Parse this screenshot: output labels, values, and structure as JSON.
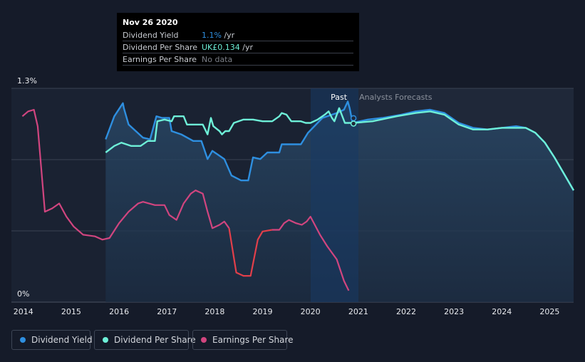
{
  "tooltip": {
    "date": "Nov 26 2020",
    "rows": [
      {
        "label": "Dividend Yield",
        "value": "1.1%",
        "unit": " /yr",
        "color": "#2e8fe0"
      },
      {
        "label": "Dividend Per Share",
        "value": "UK£0.134",
        "unit": " /yr",
        "color": "#6ef0d8"
      },
      {
        "label": "Earnings Per Share",
        "value": "No data",
        "unit": "",
        "color": "#7b7f88"
      }
    ]
  },
  "legend": [
    {
      "label": "Dividend Yield",
      "color": "#2e8fe0"
    },
    {
      "label": "Dividend Per Share",
      "color": "#6ef0d8"
    },
    {
      "label": "Earnings Per Share",
      "color": "#d1457f"
    }
  ],
  "chart_data": {
    "type": "line",
    "ylabel_top": "1.3%",
    "ylabel_bottom": "0%",
    "ylim": [
      0,
      1.3
    ],
    "xlim": [
      2013.75,
      2025.5
    ],
    "x_ticks": [
      "2014",
      "2015",
      "2016",
      "2017",
      "2018",
      "2019",
      "2020",
      "2021",
      "2022",
      "2023",
      "2024",
      "2025"
    ],
    "past_label": "Past",
    "forecast_label": "Analysts Forecasts",
    "past_end": 2020.9,
    "series": [
      {
        "name": "Dividend Yield",
        "color": "#2e8fe0",
        "unit": "%",
        "points": [
          [
            2015.72,
            0.99
          ],
          [
            2015.9,
            1.13
          ],
          [
            2016.08,
            1.21
          ],
          [
            2016.1,
            1.18
          ],
          [
            2016.2,
            1.08
          ],
          [
            2016.5,
            1.0
          ],
          [
            2016.65,
            0.99
          ],
          [
            2016.78,
            1.13
          ],
          [
            2016.9,
            1.12
          ],
          [
            2017.05,
            1.12
          ],
          [
            2017.1,
            1.04
          ],
          [
            2017.3,
            1.02
          ],
          [
            2017.55,
            0.98
          ],
          [
            2017.72,
            0.98
          ],
          [
            2017.78,
            0.93
          ],
          [
            2017.85,
            0.87
          ],
          [
            2017.95,
            0.92
          ],
          [
            2018.05,
            0.9
          ],
          [
            2018.2,
            0.87
          ],
          [
            2018.35,
            0.77
          ],
          [
            2018.55,
            0.74
          ],
          [
            2018.7,
            0.74
          ],
          [
            2018.8,
            0.88
          ],
          [
            2018.95,
            0.87
          ],
          [
            2019.1,
            0.91
          ],
          [
            2019.2,
            0.91
          ],
          [
            2019.35,
            0.91
          ],
          [
            2019.4,
            0.96
          ],
          [
            2019.8,
            0.96
          ],
          [
            2019.95,
            1.03
          ],
          [
            2020.25,
            1.12
          ],
          [
            2020.55,
            1.15
          ],
          [
            2020.7,
            1.17
          ],
          [
            2020.78,
            1.22
          ],
          [
            2020.82,
            1.18
          ],
          [
            2020.88,
            1.09
          ],
          [
            2021.2,
            1.11
          ],
          [
            2021.5,
            1.12
          ],
          [
            2021.9,
            1.14
          ],
          [
            2022.2,
            1.16
          ],
          [
            2022.5,
            1.17
          ],
          [
            2022.8,
            1.15
          ],
          [
            2023.1,
            1.09
          ],
          [
            2023.4,
            1.06
          ],
          [
            2023.7,
            1.05
          ],
          [
            2024.0,
            1.06
          ],
          [
            2024.3,
            1.07
          ],
          [
            2024.5,
            1.06
          ],
          [
            2024.7,
            1.03
          ],
          [
            2024.9,
            0.97
          ],
          [
            2025.1,
            0.88
          ],
          [
            2025.3,
            0.78
          ],
          [
            2025.5,
            0.68
          ]
        ]
      },
      {
        "name": "Dividend Per Share",
        "color": "#6ef0d8",
        "points": [
          [
            2015.72,
            0.91
          ],
          [
            2015.9,
            0.95
          ],
          [
            2016.05,
            0.97
          ],
          [
            2016.15,
            0.96
          ],
          [
            2016.25,
            0.95
          ],
          [
            2016.45,
            0.95
          ],
          [
            2016.6,
            0.98
          ],
          [
            2016.75,
            0.98
          ],
          [
            2016.8,
            1.1
          ],
          [
            2016.95,
            1.11
          ],
          [
            2017.1,
            1.1
          ],
          [
            2017.15,
            1.13
          ],
          [
            2017.35,
            1.13
          ],
          [
            2017.42,
            1.08
          ],
          [
            2017.5,
            1.08
          ],
          [
            2017.75,
            1.08
          ],
          [
            2017.85,
            1.02
          ],
          [
            2017.92,
            1.12
          ],
          [
            2017.97,
            1.07
          ],
          [
            2018.1,
            1.04
          ],
          [
            2018.15,
            1.02
          ],
          [
            2018.22,
            1.04
          ],
          [
            2018.3,
            1.04
          ],
          [
            2018.4,
            1.09
          ],
          [
            2018.6,
            1.11
          ],
          [
            2018.8,
            1.11
          ],
          [
            2019.0,
            1.1
          ],
          [
            2019.2,
            1.1
          ],
          [
            2019.35,
            1.13
          ],
          [
            2019.4,
            1.15
          ],
          [
            2019.5,
            1.14
          ],
          [
            2019.6,
            1.1
          ],
          [
            2019.8,
            1.1
          ],
          [
            2019.9,
            1.09
          ],
          [
            2020.0,
            1.09
          ],
          [
            2020.15,
            1.11
          ],
          [
            2020.3,
            1.14
          ],
          [
            2020.38,
            1.16
          ],
          [
            2020.45,
            1.12
          ],
          [
            2020.5,
            1.1
          ],
          [
            2020.6,
            1.18
          ],
          [
            2020.72,
            1.09
          ],
          [
            2020.9,
            1.09
          ],
          [
            2021.3,
            1.1
          ],
          [
            2021.8,
            1.13
          ],
          [
            2022.2,
            1.15
          ],
          [
            2022.5,
            1.16
          ],
          [
            2022.8,
            1.14
          ],
          [
            2023.1,
            1.08
          ],
          [
            2023.4,
            1.05
          ],
          [
            2023.7,
            1.05
          ],
          [
            2024.0,
            1.06
          ],
          [
            2024.3,
            1.06
          ],
          [
            2024.5,
            1.06
          ],
          [
            2024.7,
            1.03
          ],
          [
            2024.9,
            0.97
          ],
          [
            2025.1,
            0.88
          ],
          [
            2025.3,
            0.78
          ],
          [
            2025.5,
            0.68
          ]
        ]
      },
      {
        "name": "Earnings Per Share",
        "color": "#d1457f",
        "color_recent": "#e23f4a",
        "points": [
          [
            2013.98,
            1.13
          ],
          [
            2014.1,
            1.16
          ],
          [
            2014.22,
            1.17
          ],
          [
            2014.3,
            1.07
          ],
          [
            2014.45,
            0.55
          ],
          [
            2014.6,
            0.57
          ],
          [
            2014.75,
            0.6
          ],
          [
            2014.9,
            0.52
          ],
          [
            2015.05,
            0.46
          ],
          [
            2015.25,
            0.41
          ],
          [
            2015.5,
            0.4
          ],
          [
            2015.65,
            0.38
          ],
          [
            2015.8,
            0.39
          ],
          [
            2016.0,
            0.48
          ],
          [
            2016.2,
            0.55
          ],
          [
            2016.4,
            0.6
          ],
          [
            2016.5,
            0.61
          ],
          [
            2016.75,
            0.59
          ],
          [
            2016.95,
            0.59
          ],
          [
            2017.05,
            0.53
          ],
          [
            2017.2,
            0.5
          ],
          [
            2017.35,
            0.6
          ],
          [
            2017.5,
            0.66
          ],
          [
            2017.6,
            0.68
          ],
          [
            2017.75,
            0.66
          ],
          [
            2017.85,
            0.55
          ],
          [
            2017.95,
            0.45
          ],
          [
            2018.1,
            0.47
          ],
          [
            2018.2,
            0.49
          ],
          [
            2018.3,
            0.45
          ],
          [
            2018.45,
            0.18
          ],
          [
            2018.6,
            0.16
          ],
          [
            2018.75,
            0.16
          ],
          [
            2018.9,
            0.38
          ],
          [
            2019.0,
            0.43
          ],
          [
            2019.2,
            0.44
          ],
          [
            2019.35,
            0.44
          ],
          [
            2019.45,
            0.48
          ],
          [
            2019.55,
            0.5
          ],
          [
            2019.7,
            0.48
          ],
          [
            2019.82,
            0.47
          ],
          [
            2019.92,
            0.49
          ],
          [
            2020.0,
            0.52
          ],
          [
            2020.2,
            0.41
          ],
          [
            2020.35,
            0.34
          ],
          [
            2020.55,
            0.26
          ],
          [
            2020.7,
            0.13
          ],
          [
            2020.8,
            0.07
          ]
        ]
      }
    ]
  }
}
